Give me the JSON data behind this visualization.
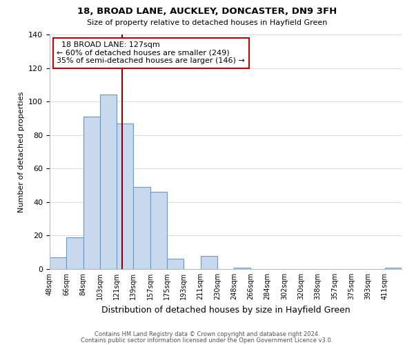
{
  "title1": "18, BROAD LANE, AUCKLEY, DONCASTER, DN9 3FH",
  "title2": "Size of property relative to detached houses in Hayfield Green",
  "xlabel": "Distribution of detached houses by size in Hayfield Green",
  "ylabel": "Number of detached properties",
  "footer1": "Contains HM Land Registry data © Crown copyright and database right 2024.",
  "footer2": "Contains public sector information licensed under the Open Government Licence v3.0.",
  "bin_labels": [
    "48sqm",
    "66sqm",
    "84sqm",
    "103sqm",
    "121sqm",
    "139sqm",
    "157sqm",
    "175sqm",
    "193sqm",
    "211sqm",
    "230sqm",
    "248sqm",
    "266sqm",
    "284sqm",
    "302sqm",
    "320sqm",
    "338sqm",
    "357sqm",
    "375sqm",
    "393sqm",
    "411sqm"
  ],
  "bar_heights": [
    7,
    19,
    91,
    104,
    87,
    49,
    46,
    6,
    0,
    8,
    0,
    1,
    0,
    0,
    0,
    0,
    0,
    0,
    0,
    0,
    1
  ],
  "bar_color": "#c8d9ee",
  "bar_edge_color": "#5b9bd5",
  "ylim": [
    0,
    140
  ],
  "yticks": [
    0,
    20,
    40,
    60,
    80,
    100,
    120,
    140
  ],
  "property_line_color": "#8b0000",
  "annotation_title": "18 BROAD LANE: 127sqm",
  "annotation_line1": "← 60% of detached houses are smaller (249)",
  "annotation_line2": "35% of semi-detached houses are larger (146) →",
  "annotation_box_color": "#ffffff",
  "annotation_box_edge": "#cc0000",
  "background_color": "#ffffff",
  "property_sqm": 127,
  "bin_start_sqm": [
    48,
    66,
    84,
    103,
    121,
    139,
    157,
    175,
    193,
    211,
    230,
    248,
    266,
    284,
    302,
    320,
    338,
    357,
    375,
    393,
    411
  ]
}
